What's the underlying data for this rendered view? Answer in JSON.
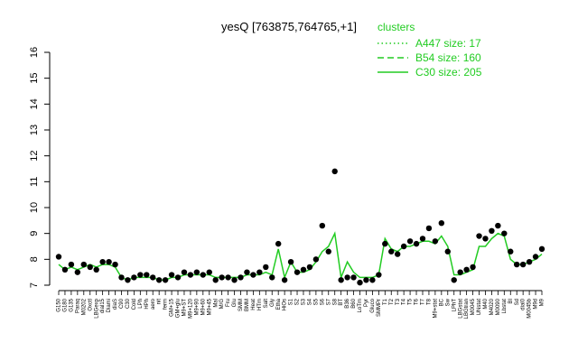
{
  "chart_data": {
    "type": "line",
    "title": "yesQ [763875,764765,+1]",
    "ylim": [
      7,
      16
    ],
    "yticks": [
      7,
      8,
      9,
      10,
      11,
      12,
      13,
      14,
      15,
      16
    ],
    "grid": false,
    "legend": {
      "title": "clusters",
      "placement": "top-right",
      "entries": [
        {
          "label": "A447 size: 17",
          "style": "dotted"
        },
        {
          "label": "B54 size: 160",
          "style": "dashed"
        },
        {
          "label": "C30 size: 205",
          "style": "solid"
        }
      ]
    },
    "colors": {
      "line": "#22cc22",
      "points": "#000000",
      "axis": "#000000"
    },
    "x_tick_labels": [
      "G150",
      "G180",
      "G135",
      "Paraq",
      "M0202",
      "Oxctl",
      "LBGexp",
      "dial15",
      "Diami",
      "diaS",
      "C90",
      "C30",
      "Cold",
      "LPh",
      "HPh",
      "aero",
      "nit",
      "ferm",
      "GM+15",
      "GM+glu",
      "M9+ST",
      "M9+120",
      "M9+90",
      "M9+60",
      "M9+45",
      "Mal",
      "M/G",
      "Fru",
      "Glu",
      "SMM",
      "BMM",
      "Heat",
      "HTm",
      "Salt",
      "Gly",
      "Etha",
      "HiOs",
      "S1",
      "S2",
      "S3",
      "S4",
      "S5",
      "S6",
      "S7",
      "S8",
      "BT",
      "B36",
      "B60",
      "LoTm",
      "Pyr",
      "Gluco",
      "SMMPr",
      "T1",
      "T2",
      "T3",
      "T4",
      "T5",
      "T6",
      "T7",
      "T8",
      "M9+stat",
      "BC",
      "Sw",
      "LPhT",
      "LBGstat",
      "LBGtran",
      "M0045",
      "UNstat",
      "M40",
      "M4020",
      "M0090",
      "Lbstat",
      "BI",
      "Sd",
      "dial0",
      "M0045b",
      "M9d",
      "M9"
    ],
    "series": [
      {
        "kind": "line",
        "values": [
          7.8,
          7.6,
          7.7,
          7.6,
          7.7,
          7.8,
          7.7,
          7.8,
          7.8,
          7.7,
          7.3,
          7.2,
          7.3,
          7.3,
          7.3,
          7.3,
          7.2,
          7.2,
          7.3,
          7.3,
          7.4,
          7.4,
          7.4,
          7.4,
          7.4,
          7.3,
          7.3,
          7.3,
          7.3,
          7.3,
          7.4,
          7.4,
          7.4,
          7.5,
          7.4,
          8.4,
          7.3,
          7.9,
          7.5,
          7.5,
          7.6,
          7.9,
          8.3,
          8.5,
          9.0,
          7.3,
          7.9,
          7.5,
          7.3,
          7.3,
          7.3,
          7.4,
          8.8,
          8.4,
          8.3,
          8.5,
          8.5,
          8.6,
          8.7,
          8.7,
          8.6,
          8.9,
          8.5,
          7.4,
          7.4,
          7.5,
          7.6,
          8.5,
          8.5,
          8.8,
          9.0,
          8.9,
          8.0,
          7.8,
          7.8,
          7.9,
          8.0,
          8.2
        ]
      },
      {
        "kind": "points",
        "values": [
          8.1,
          7.6,
          7.8,
          7.5,
          7.8,
          7.7,
          7.6,
          7.9,
          7.9,
          7.8,
          7.3,
          7.2,
          7.3,
          7.4,
          7.4,
          7.3,
          7.2,
          7.2,
          7.4,
          7.3,
          7.5,
          7.4,
          7.5,
          7.4,
          7.5,
          7.2,
          7.3,
          7.3,
          7.2,
          7.3,
          7.5,
          7.4,
          7.5,
          7.7,
          7.3,
          8.6,
          7.2,
          7.9,
          7.5,
          7.6,
          7.7,
          8.0,
          9.3,
          8.3,
          11.4,
          7.2,
          7.3,
          7.3,
          7.1,
          7.2,
          7.2,
          7.4,
          8.6,
          8.3,
          8.2,
          8.5,
          8.7,
          8.6,
          8.8,
          9.2,
          8.7,
          9.4,
          8.3,
          7.2,
          7.5,
          7.6,
          7.7,
          8.9,
          8.8,
          9.1,
          9.3,
          9.0,
          8.3,
          7.8,
          7.8,
          7.9,
          8.1,
          8.4
        ]
      }
    ]
  }
}
